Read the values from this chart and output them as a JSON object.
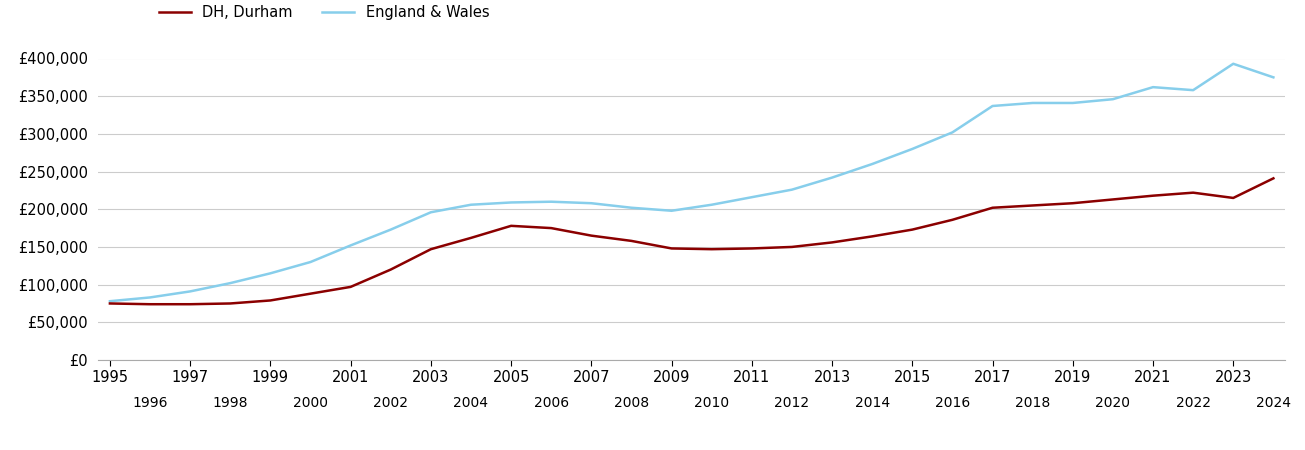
{
  "years": [
    1995,
    1996,
    1997,
    1998,
    1999,
    2000,
    2001,
    2002,
    2003,
    2004,
    2005,
    2006,
    2007,
    2008,
    2009,
    2010,
    2011,
    2012,
    2013,
    2014,
    2015,
    2016,
    2017,
    2018,
    2019,
    2020,
    2021,
    2022,
    2023,
    2024
  ],
  "durham": [
    75000,
    74000,
    74000,
    75000,
    79000,
    88000,
    97000,
    120000,
    147000,
    162000,
    178000,
    175000,
    165000,
    158000,
    148000,
    147000,
    148000,
    150000,
    156000,
    164000,
    173000,
    186000,
    202000,
    205000,
    208000,
    213000,
    218000,
    222000,
    215000,
    241000
  ],
  "england_wales": [
    78000,
    83000,
    91000,
    102000,
    115000,
    130000,
    152000,
    173000,
    196000,
    206000,
    209000,
    210000,
    208000,
    202000,
    198000,
    206000,
    216000,
    226000,
    242000,
    260000,
    280000,
    302000,
    337000,
    341000,
    341000,
    346000,
    362000,
    358000,
    393000,
    375000
  ],
  "durham_color": "#8B0000",
  "ew_color": "#87CEEB",
  "legend_durham": "DH, Durham",
  "legend_ew": "England & Wales",
  "ylim_min": 0,
  "ylim_max": 400000,
  "yticks": [
    0,
    50000,
    100000,
    150000,
    200000,
    250000,
    300000,
    350000,
    400000
  ],
  "bg_color": "#ffffff",
  "grid_color": "#cccccc",
  "line_width": 1.8,
  "font_size": 10.5
}
